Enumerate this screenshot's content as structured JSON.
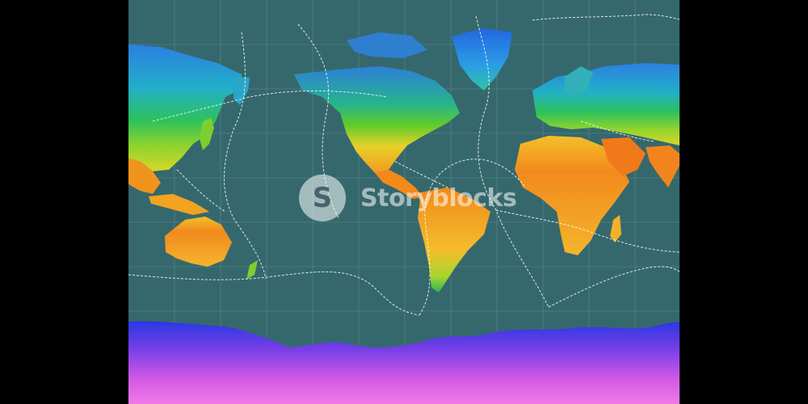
{
  "watermark": {
    "text": "Storyblocks",
    "badge_glyph": "S",
    "badge_icon": "storyblocks-logo-icon"
  },
  "map": {
    "kind": "world-temperature-map",
    "projection": "pacific-centered",
    "overlays": [
      "graticule",
      "tectonic-plate-boundaries"
    ],
    "colors": {
      "background": "#000000",
      "ocean": "#35686d",
      "graticule": "#7fa3a8",
      "plate_boundary": "#ffffff",
      "hot": "#f08a1a",
      "warm": "#f6c42a",
      "temperate": "#7ccf2f",
      "cool": "#22b15d",
      "cold": "#29a6d9",
      "frigid": "#1f4fd8",
      "polar": "#e45de6"
    }
  }
}
